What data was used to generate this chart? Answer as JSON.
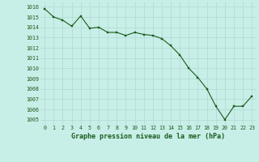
{
  "x": [
    0,
    1,
    2,
    3,
    4,
    5,
    6,
    7,
    8,
    9,
    10,
    11,
    12,
    13,
    14,
    15,
    16,
    17,
    18,
    19,
    20,
    21,
    22,
    23
  ],
  "y": [
    1015.8,
    1015.0,
    1014.7,
    1014.1,
    1015.1,
    1013.9,
    1014.0,
    1013.5,
    1013.5,
    1013.2,
    1013.5,
    1013.3,
    1013.2,
    1012.9,
    1012.2,
    1011.3,
    1010.0,
    1009.1,
    1008.0,
    1006.3,
    1005.0,
    1006.3,
    1006.3,
    1007.3
  ],
  "line_color": "#1a5c1a",
  "marker_color": "#1a5c1a",
  "bg_color": "#c8eee8",
  "grid_color": "#b0d8d0",
  "xlabel": "Graphe pression niveau de la mer (hPa)",
  "xlabel_color": "#1a5c1a",
  "tick_color": "#1a5c1a",
  "ylim": [
    1004.5,
    1016.5
  ],
  "xlim": [
    -0.5,
    23.5
  ],
  "yticks": [
    1005,
    1006,
    1007,
    1008,
    1009,
    1010,
    1011,
    1012,
    1013,
    1014,
    1015,
    1016
  ],
  "xticks": [
    0,
    1,
    2,
    3,
    4,
    5,
    6,
    7,
    8,
    9,
    10,
    11,
    12,
    13,
    14,
    15,
    16,
    17,
    18,
    19,
    20,
    21,
    22,
    23
  ]
}
